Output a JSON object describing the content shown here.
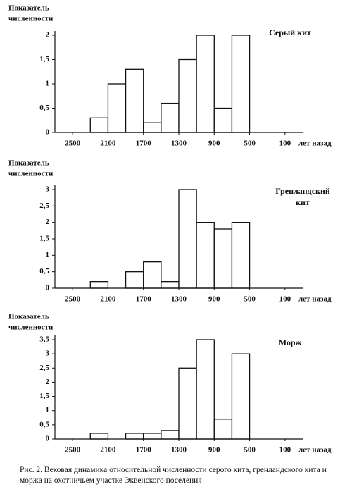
{
  "chart_data": [
    {
      "type": "histogram",
      "title": "Серый кит",
      "y_label": [
        "Показатель",
        "численности"
      ],
      "x_label": "лет назад",
      "bins": [
        2500,
        2300,
        2100,
        1900,
        1700,
        1500,
        1300,
        1100,
        900,
        700,
        500
      ],
      "counts": [
        0,
        0.3,
        1.0,
        1.3,
        0.2,
        0.6,
        1.5,
        2.0,
        0.5,
        2.0
      ],
      "color": "#ffffff",
      "xlim": [
        2700,
        -100
      ],
      "xticks": [
        2500,
        2100,
        1700,
        1300,
        900,
        500,
        100
      ],
      "ylim": [
        0,
        2
      ],
      "yticks": [
        0,
        {
          "value": 0.5,
          "label": "0,5"
        },
        1,
        {
          "value": 1.5,
          "label": "1,5"
        },
        2
      ]
    },
    {
      "type": "histogram",
      "title": [
        "Гренландский",
        "кит"
      ],
      "y_label": [
        "Показатель",
        "численности"
      ],
      "x_label": "лет назад",
      "bins": [
        2500,
        2300,
        2100,
        1900,
        1700,
        1500,
        1300,
        1100,
        900,
        700,
        500
      ],
      "counts": [
        0,
        0.2,
        0,
        0.5,
        0.8,
        0.2,
        3.0,
        2.0,
        1.8,
        2.0
      ],
      "color": "#ffffff",
      "xlim": [
        2700,
        -100
      ],
      "xticks": [
        2500,
        2100,
        1700,
        1300,
        900,
        500,
        100
      ],
      "ylim": [
        0,
        3
      ],
      "yticks": [
        0,
        {
          "value": 0.5,
          "label": "0,5"
        },
        1,
        {
          "value": 1.5,
          "label": "1,5"
        },
        2,
        {
          "value": 2.5,
          "label": "2,5"
        },
        3
      ]
    },
    {
      "type": "histogram",
      "title": "Морж",
      "y_label": [
        "Показатель",
        "численности"
      ],
      "x_label": "лет назад",
      "bins": [
        2500,
        2300,
        2100,
        1900,
        1700,
        1500,
        1300,
        1100,
        900,
        700,
        500
      ],
      "counts": [
        0,
        0.2,
        0,
        0.2,
        0.2,
        0.3,
        2.5,
        3.5,
        0.7,
        3.0
      ],
      "color": "#ffffff",
      "xlim": [
        2700,
        -100
      ],
      "xticks": [
        2500,
        2100,
        1700,
        1300,
        900,
        500,
        100
      ],
      "ylim": [
        0,
        3.5
      ],
      "yticks": [
        0,
        {
          "value": 0.5,
          "label": "0,5"
        },
        1,
        {
          "value": 1.5,
          "label": "1,5"
        },
        2,
        {
          "value": 2.5,
          "label": "2,5"
        },
        3,
        {
          "value": 3.5,
          "label": "3,5"
        }
      ]
    }
  ],
  "caption": "Рис. 2. Вековая динамика относительной численности серого кита, гренландского кита и моржа на охотничьем участке Эквенского поселения"
}
